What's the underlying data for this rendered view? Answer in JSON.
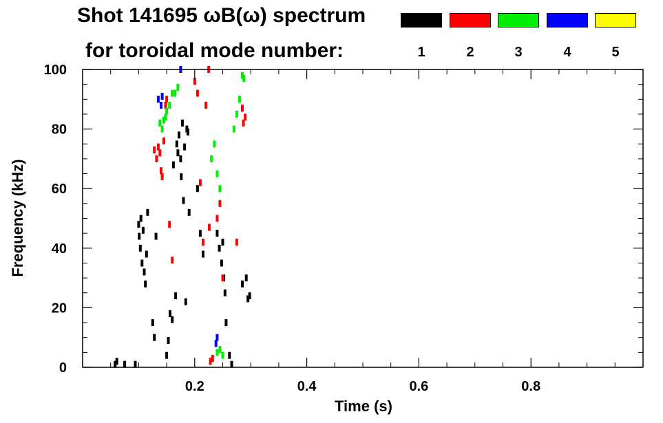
{
  "chart_data": {
    "type": "heatmap",
    "title": "Shot 141695 ωB(ω) spectrum",
    "subtitle": "for toroidal mode number:",
    "xlabel": "Time (s)",
    "ylabel": "Frequency (kHz)",
    "xlim": [
      0.0,
      1.0
    ],
    "ylim": [
      0,
      100
    ],
    "x_ticks": [
      0.2,
      0.4,
      0.6,
      0.8
    ],
    "x_tick_labels": [
      "0.2",
      "0.4",
      "0.6",
      "0.8"
    ],
    "y_ticks": [
      0,
      20,
      40,
      60,
      80,
      100
    ],
    "y_tick_labels": [
      "0",
      "20",
      "40",
      "60",
      "80",
      "100"
    ],
    "grid": false,
    "legend_placement": "top",
    "legend": [
      {
        "mode": "1",
        "color": "#000000"
      },
      {
        "mode": "2",
        "color": "#ff0000"
      },
      {
        "mode": "3",
        "color": "#00ee00"
      },
      {
        "mode": "4",
        "color": "#0000ff"
      },
      {
        "mode": "5",
        "color": "#ffff00"
      }
    ],
    "series": [
      {
        "mode": "1",
        "color": "#000000",
        "points": [
          [
            0.058,
            1
          ],
          [
            0.061,
            2
          ],
          [
            0.075,
            1
          ],
          [
            0.094,
            1
          ],
          [
            0.1,
            48
          ],
          [
            0.101,
            44
          ],
          [
            0.103,
            40
          ],
          [
            0.104,
            50
          ],
          [
            0.106,
            35
          ],
          [
            0.108,
            46
          ],
          [
            0.11,
            32
          ],
          [
            0.112,
            28
          ],
          [
            0.114,
            38
          ],
          [
            0.116,
            52
          ],
          [
            0.125,
            15
          ],
          [
            0.128,
            10
          ],
          [
            0.131,
            44
          ],
          [
            0.15,
            4
          ],
          [
            0.153,
            9
          ],
          [
            0.156,
            18
          ],
          [
            0.16,
            16
          ],
          [
            0.162,
            68
          ],
          [
            0.166,
            24
          ],
          [
            0.168,
            75
          ],
          [
            0.17,
            72
          ],
          [
            0.172,
            78
          ],
          [
            0.175,
            70
          ],
          [
            0.176,
            64
          ],
          [
            0.178,
            82
          ],
          [
            0.18,
            56
          ],
          [
            0.182,
            74
          ],
          [
            0.184,
            22
          ],
          [
            0.186,
            80
          ],
          [
            0.188,
            79
          ],
          [
            0.19,
            52
          ],
          [
            0.205,
            60
          ],
          [
            0.21,
            45
          ],
          [
            0.215,
            38
          ],
          [
            0.24,
            45
          ],
          [
            0.244,
            40
          ],
          [
            0.248,
            35
          ],
          [
            0.25,
            42
          ],
          [
            0.252,
            30
          ],
          [
            0.254,
            25
          ],
          [
            0.256,
            15
          ],
          [
            0.262,
            4
          ],
          [
            0.266,
            1
          ],
          [
            0.285,
            28
          ],
          [
            0.292,
            30
          ],
          [
            0.295,
            23
          ],
          [
            0.298,
            24
          ]
        ]
      },
      {
        "mode": "2",
        "color": "#ff0000",
        "points": [
          [
            0.128,
            73
          ],
          [
            0.132,
            70
          ],
          [
            0.135,
            74
          ],
          [
            0.138,
            72
          ],
          [
            0.14,
            66
          ],
          [
            0.142,
            64
          ],
          [
            0.145,
            76
          ],
          [
            0.148,
            88
          ],
          [
            0.15,
            90
          ],
          [
            0.155,
            48
          ],
          [
            0.16,
            36
          ],
          [
            0.2,
            96
          ],
          [
            0.205,
            92
          ],
          [
            0.21,
            62
          ],
          [
            0.215,
            42
          ],
          [
            0.22,
            88
          ],
          [
            0.225,
            100
          ],
          [
            0.226,
            47
          ],
          [
            0.228,
            2
          ],
          [
            0.232,
            3
          ],
          [
            0.24,
            50
          ],
          [
            0.245,
            55
          ],
          [
            0.25,
            30
          ],
          [
            0.275,
            42
          ],
          [
            0.285,
            87
          ],
          [
            0.287,
            82
          ],
          [
            0.29,
            84
          ]
        ]
      },
      {
        "mode": "3",
        "color": "#00ee00",
        "points": [
          [
            0.138,
            82
          ],
          [
            0.142,
            80
          ],
          [
            0.145,
            83
          ],
          [
            0.148,
            84
          ],
          [
            0.15,
            86
          ],
          [
            0.155,
            88
          ],
          [
            0.16,
            92
          ],
          [
            0.165,
            92
          ],
          [
            0.17,
            94
          ],
          [
            0.23,
            70
          ],
          [
            0.235,
            75
          ],
          [
            0.24,
            65
          ],
          [
            0.245,
            60
          ],
          [
            0.24,
            5
          ],
          [
            0.245,
            6
          ],
          [
            0.25,
            4
          ],
          [
            0.27,
            80
          ],
          [
            0.275,
            85
          ],
          [
            0.28,
            90
          ],
          [
            0.285,
            98
          ],
          [
            0.288,
            97
          ]
        ]
      },
      {
        "mode": "4",
        "color": "#0000ff",
        "points": [
          [
            0.135,
            90
          ],
          [
            0.14,
            88
          ],
          [
            0.142,
            91
          ],
          [
            0.175,
            100
          ],
          [
            0.238,
            8
          ],
          [
            0.24,
            10
          ]
        ]
      },
      {
        "mode": "5",
        "color": "#ffff00",
        "points": []
      }
    ]
  }
}
